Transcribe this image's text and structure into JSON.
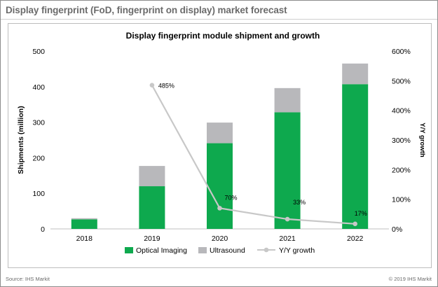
{
  "header": {
    "title": "Display fingerprint (FoD, fingerprint on display) market forecast"
  },
  "footer": {
    "source": "Source: IHS Markit",
    "copyright": "© 2019 IHS Markit"
  },
  "colors": {
    "optical": "#0ea94e",
    "ultrasound": "#b8b8bb",
    "growth": "#c8c8c8"
  },
  "chart_data": {
    "type": "bar",
    "stacked": true,
    "title": "Display fingerprint module shipment and growth",
    "categories": [
      "2018",
      "2019",
      "2020",
      "2021",
      "2022"
    ],
    "series": [
      {
        "name": "Optical Imaging",
        "values": [
          27,
          120,
          241,
          328,
          407
        ]
      },
      {
        "name": "Ultrasound",
        "values": [
          3,
          57,
          58,
          68,
          58
        ]
      }
    ],
    "line_series": {
      "name": "Y/Y growth",
      "axis": "right",
      "values": [
        null,
        485,
        70,
        33,
        17
      ],
      "labels": [
        "",
        "485%",
        "70%",
        "33%",
        "17%"
      ]
    },
    "ylabel": "Shipments (million)",
    "ylabel_right": "Y/Y growth",
    "ylim": [
      0,
      500
    ],
    "y_ticks": [
      "0",
      "100",
      "200",
      "300",
      "400",
      "500"
    ],
    "ylim_right": [
      0,
      600
    ],
    "y_right_ticks": [
      "0%",
      "100%",
      "200%",
      "300%",
      "400%",
      "500%",
      "600%"
    ],
    "legend": [
      "Optical Imaging",
      "Ultrasound",
      "Y/Y growth"
    ],
    "legend_position": "bottom",
    "grid": false
  }
}
